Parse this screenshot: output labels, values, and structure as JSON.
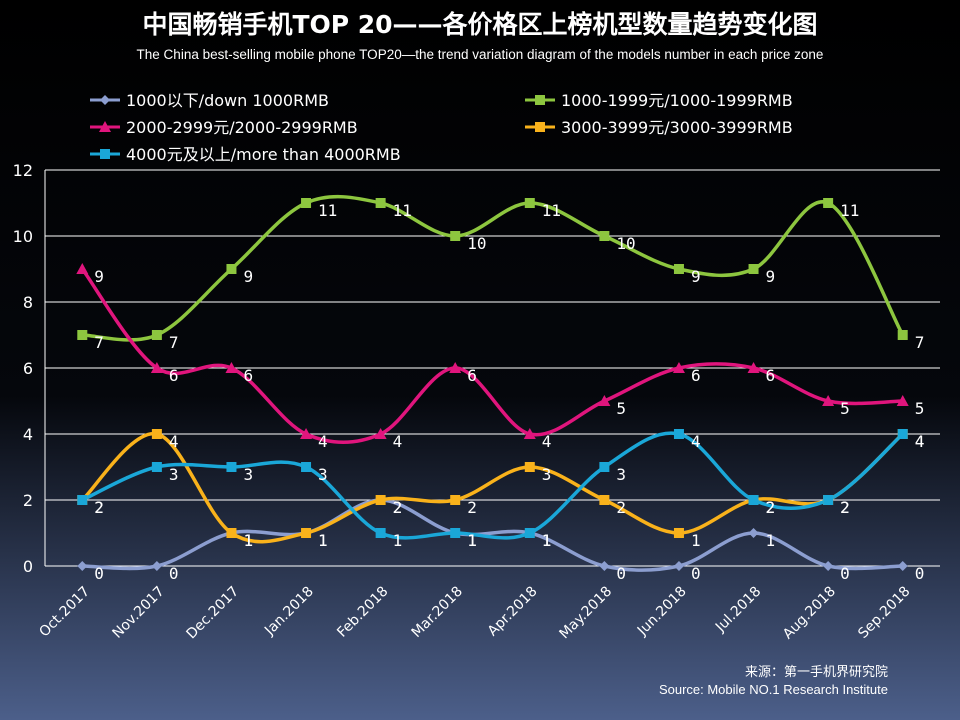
{
  "chart_data": {
    "type": "line",
    "title": "中国畅销手机TOP 20——各价格区上榜机型数量趋势变化图",
    "subtitle": "The China best-selling mobile phone TOP20—the trend variation diagram of the models number in each price zone",
    "categories": [
      "Oct.2017",
      "Nov.2017",
      "Dec.2017",
      "Jan.2018",
      "Feb.2018",
      "Mar.2018",
      "Apr.2018",
      "May.2018",
      "Jun.2018",
      "Jul.2018",
      "Aug.2018",
      "Sep.2018"
    ],
    "series": [
      {
        "name": "1000以下/down 1000RMB",
        "color": "#8c9ed0",
        "marker": "diamond",
        "values": [
          0,
          0,
          1,
          1,
          2,
          1,
          1,
          0,
          0,
          1,
          0,
          0
        ]
      },
      {
        "name": "1000-1999元/1000-1999RMB",
        "color": "#8dc63f",
        "marker": "square",
        "values": [
          7,
          7,
          9,
          11,
          11,
          10,
          11,
          10,
          9,
          9,
          11,
          7
        ]
      },
      {
        "name": "2000-2999元/2000-2999RMB",
        "color": "#e0157d",
        "marker": "triangle",
        "values": [
          9,
          6,
          6,
          4,
          4,
          6,
          4,
          5,
          6,
          6,
          5,
          5
        ]
      },
      {
        "name": "3000-3999元/3000-3999RMB",
        "color": "#f9b21b",
        "marker": "square",
        "values": [
          2,
          4,
          1,
          1,
          2,
          2,
          3,
          2,
          1,
          2,
          2,
          4
        ]
      },
      {
        "name": "4000元及以上/more than 4000RMB",
        "color": "#1aa7d8",
        "marker": "square",
        "values": [
          2,
          3,
          3,
          3,
          1,
          1,
          1,
          3,
          4,
          2,
          2,
          4
        ]
      }
    ],
    "ylim": [
      0,
      12
    ],
    "yticks": [
      0,
      2,
      4,
      6,
      8,
      10,
      12
    ],
    "grid": true,
    "smooth": true,
    "source": [
      "来源：第一手机界研究院",
      "Source: Mobile NO.1 Research Institute"
    ]
  }
}
